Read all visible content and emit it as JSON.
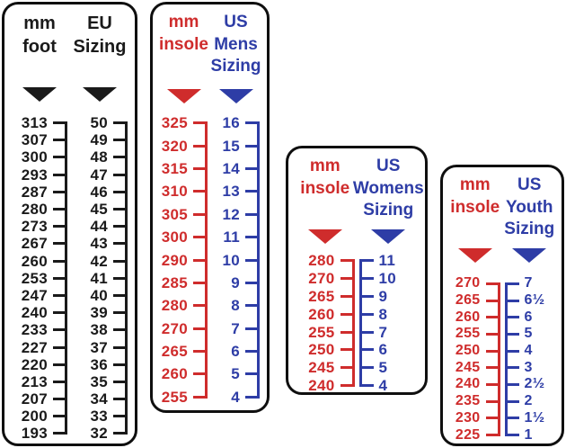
{
  "colors": {
    "black": "#1a1a1a",
    "red": "#cf2c2c",
    "blue": "#2e3da6",
    "panel_border": "#0f0f0f",
    "background": "#ffffff"
  },
  "chart_data": [
    {
      "type": "table",
      "title": "mm foot to EU Sizing conversion",
      "columns": [
        {
          "label_lines": [
            "mm",
            "foot"
          ],
          "color": "#1a1a1a",
          "bracket": "right",
          "values": [
            "313",
            "307",
            "300",
            "293",
            "287",
            "280",
            "273",
            "267",
            "260",
            "253",
            "247",
            "240",
            "233",
            "227",
            "220",
            "213",
            "207",
            "200",
            "193"
          ]
        },
        {
          "label_lines": [
            "EU",
            "Sizing"
          ],
          "color": "#1a1a1a",
          "bracket": "right",
          "values": [
            "50",
            "49",
            "48",
            "47",
            "46",
            "45",
            "44",
            "43",
            "42",
            "41",
            "40",
            "39",
            "38",
            "37",
            "36",
            "35",
            "34",
            "33",
            "32"
          ]
        }
      ]
    },
    {
      "type": "table",
      "title": "mm insole to US Mens Sizing conversion",
      "columns": [
        {
          "label_lines": [
            "mm",
            "insole"
          ],
          "color": "#cf2c2c",
          "bracket": "right",
          "values": [
            "325",
            "320",
            "315",
            "310",
            "305",
            "300",
            "290",
            "285",
            "280",
            "270",
            "265",
            "260",
            "255"
          ]
        },
        {
          "label_lines": [
            "US",
            "Mens",
            "Sizing"
          ],
          "color": "#2e3da6",
          "bracket": "right",
          "values": [
            "16",
            "15",
            "14",
            "13",
            "12",
            "11",
            "10",
            "9",
            "8",
            "7",
            "6",
            "5",
            "4"
          ]
        }
      ]
    },
    {
      "type": "table",
      "title": "mm insole to US Womens Sizing conversion",
      "columns": [
        {
          "label_lines": [
            "mm",
            "insole"
          ],
          "color": "#cf2c2c",
          "bracket": "right",
          "values": [
            "280",
            "270",
            "265",
            "260",
            "255",
            "250",
            "245",
            "240"
          ]
        },
        {
          "label_lines": [
            "US",
            "Womens",
            "Sizing"
          ],
          "color": "#2e3da6",
          "bracket": "left",
          "values": [
            "11",
            "10",
            "9",
            "8",
            "7",
            "6",
            "5",
            "4"
          ]
        }
      ]
    },
    {
      "type": "table",
      "title": "mm insole to US Youth Sizing conversion",
      "columns": [
        {
          "label_lines": [
            "mm",
            "insole"
          ],
          "color": "#cf2c2c",
          "bracket": "right",
          "values": [
            "270",
            "265",
            "260",
            "255",
            "250",
            "245",
            "240",
            "235",
            "230",
            "225"
          ]
        },
        {
          "label_lines": [
            "US",
            "Youth",
            "Sizing"
          ],
          "color": "#2e3da6",
          "bracket": "left",
          "values": [
            "7",
            "6½",
            "6",
            "5",
            "4",
            "3",
            "2½",
            "2",
            "1½",
            "1"
          ]
        }
      ]
    }
  ]
}
